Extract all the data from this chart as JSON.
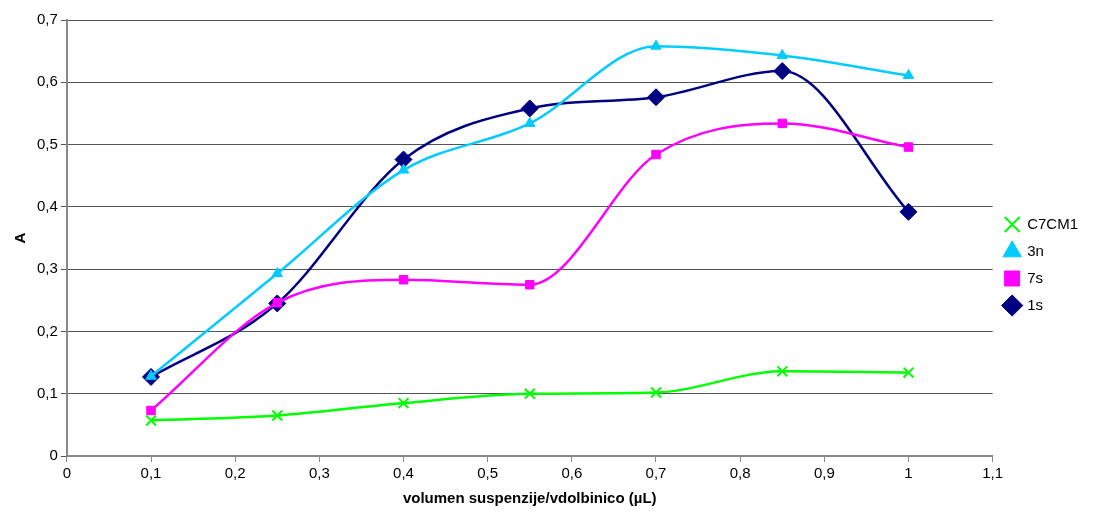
{
  "chart_data": {
    "type": "line",
    "xlabel": "volumen suspenzije/vdolbinico (µL)",
    "ylabel": "A",
    "x": [
      0.1,
      0.25,
      0.4,
      0.55,
      0.7,
      0.85,
      1.0
    ],
    "series": [
      {
        "name": "1s",
        "color": "#000080",
        "marker": "diamond",
        "values": [
          0.127,
          0.245,
          0.476,
          0.558,
          0.576,
          0.618,
          0.392
        ]
      },
      {
        "name": "7s",
        "color": "#ff00ff",
        "marker": "square",
        "values": [
          0.073,
          0.246,
          0.283,
          0.275,
          0.484,
          0.534,
          0.496
        ]
      },
      {
        "name": "3n",
        "color": "#00ccff",
        "marker": "triangle",
        "values": [
          0.128,
          0.293,
          0.459,
          0.534,
          0.658,
          0.643,
          0.611
        ]
      },
      {
        "name": "C7CM1",
        "color": "#00ff00",
        "marker": "cross",
        "values": [
          0.057,
          0.065,
          0.085,
          0.1,
          0.102,
          0.136,
          0.134
        ]
      }
    ],
    "xlim": [
      0,
      1.1
    ],
    "xticks": [
      0,
      {
        "value": 0.1,
        "label": "0,1"
      },
      {
        "value": 0.2,
        "label": "0,2"
      },
      {
        "value": 0.3,
        "label": "0,3"
      },
      {
        "value": 0.4,
        "label": "0,4"
      },
      {
        "value": 0.5,
        "label": "0,5"
      },
      {
        "value": 0.6,
        "label": "0,6"
      },
      {
        "value": 0.7,
        "label": "0,7"
      },
      {
        "value": 0.8,
        "label": "0,8"
      },
      {
        "value": 0.9,
        "label": "0,9"
      },
      1,
      {
        "value": 1.1,
        "label": "1,1"
      }
    ],
    "ylim": [
      0,
      0.7
    ],
    "yticks": [
      0,
      {
        "value": 0.1,
        "label": "0,1"
      },
      {
        "value": 0.2,
        "label": "0,2"
      },
      {
        "value": 0.3,
        "label": "0,3"
      },
      {
        "value": 0.4,
        "label": "0,4"
      },
      {
        "value": 0.5,
        "label": "0,5"
      },
      {
        "value": 0.6,
        "label": "0,6"
      },
      {
        "value": 0.7,
        "label": "0,7"
      }
    ],
    "grid": "y",
    "legend": "right",
    "line_style": "solid"
  }
}
